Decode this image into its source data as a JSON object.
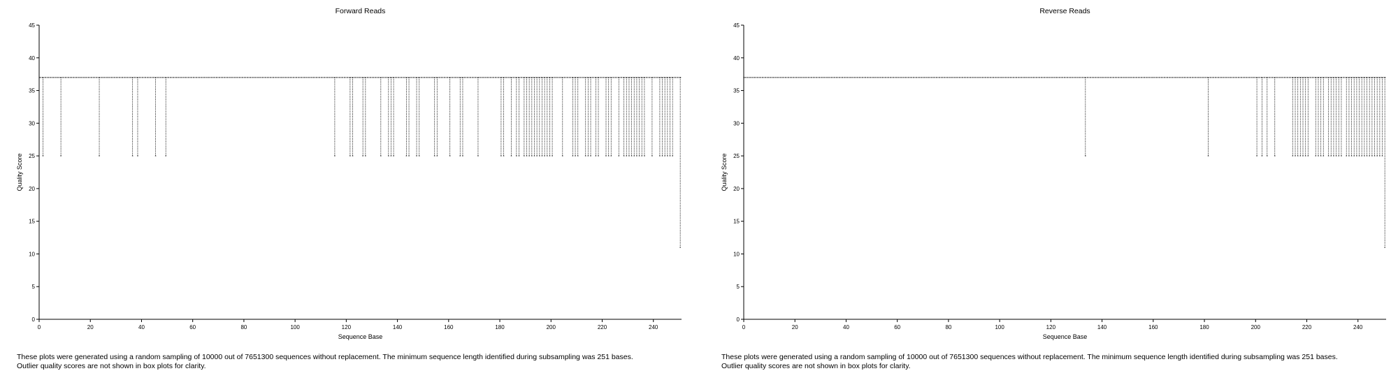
{
  "chart_data": [
    {
      "type": "box",
      "title": "Forward Reads",
      "xlabel": "Sequence Base",
      "ylabel": "Quality Score",
      "xlim": [
        0,
        251
      ],
      "ylim": [
        0,
        45
      ],
      "x_ticks": [
        0,
        20,
        40,
        60,
        80,
        100,
        120,
        140,
        160,
        180,
        200,
        220,
        240
      ],
      "y_ticks": [
        0,
        5,
        10,
        15,
        20,
        25,
        30,
        35,
        40,
        45
      ],
      "median": 37,
      "box_low": 37,
      "box_high": 37,
      "whisker_high": 37,
      "whisker_low_default": 37,
      "whisker_low_25_positions": [
        2,
        9,
        24,
        37,
        39,
        46,
        50,
        116,
        122,
        123,
        127,
        128,
        134,
        137,
        138,
        139,
        144,
        145,
        148,
        149,
        155,
        156,
        161,
        165,
        166,
        172,
        181,
        182,
        185,
        187,
        188,
        190,
        191,
        192,
        193,
        194,
        195,
        196,
        197,
        198,
        199,
        200,
        201,
        205,
        209,
        210,
        211,
        214,
        215,
        216,
        218,
        219,
        222,
        223,
        224,
        227,
        229,
        230,
        231,
        232,
        233,
        234,
        235,
        236,
        237,
        240,
        243,
        244,
        245,
        246,
        247,
        248
      ],
      "whisker_low_11_positions": [
        251
      ],
      "footnote": [
        "These plots were generated using a random sampling of 10000 out of 7651300 sequences without replacement. The minimum sequence length identified during subsampling was 251 bases.",
        "Outlier quality scores are not shown in box plots for clarity."
      ]
    },
    {
      "type": "box",
      "title": "Reverse Reads",
      "xlabel": "Sequence Base",
      "ylabel": "Quality Score",
      "xlim": [
        0,
        251
      ],
      "ylim": [
        0,
        45
      ],
      "x_ticks": [
        0,
        20,
        40,
        60,
        80,
        100,
        120,
        140,
        160,
        180,
        200,
        220,
        240
      ],
      "y_ticks": [
        0,
        5,
        10,
        15,
        20,
        25,
        30,
        35,
        40,
        45
      ],
      "median": 37,
      "box_low": 37,
      "box_high": 37,
      "whisker_high": 37,
      "whisker_low_default": 37,
      "whisker_low_25_positions": [
        134,
        182,
        201,
        203,
        205,
        208,
        215,
        216,
        217,
        218,
        219,
        220,
        221,
        224,
        225,
        226,
        227,
        229,
        230,
        231,
        232,
        233,
        234,
        236,
        237,
        238,
        239,
        240,
        241,
        242,
        243,
        244,
        245,
        246,
        247,
        248,
        249,
        250
      ],
      "whisker_low_11_positions": [
        251
      ],
      "footnote": [
        "These plots were generated using a random sampling of 10000 out of 7651300 sequences without replacement. The minimum sequence length identified during subsampling was 251 bases.",
        "Outlier quality scores are not shown in box plots for clarity."
      ]
    }
  ]
}
